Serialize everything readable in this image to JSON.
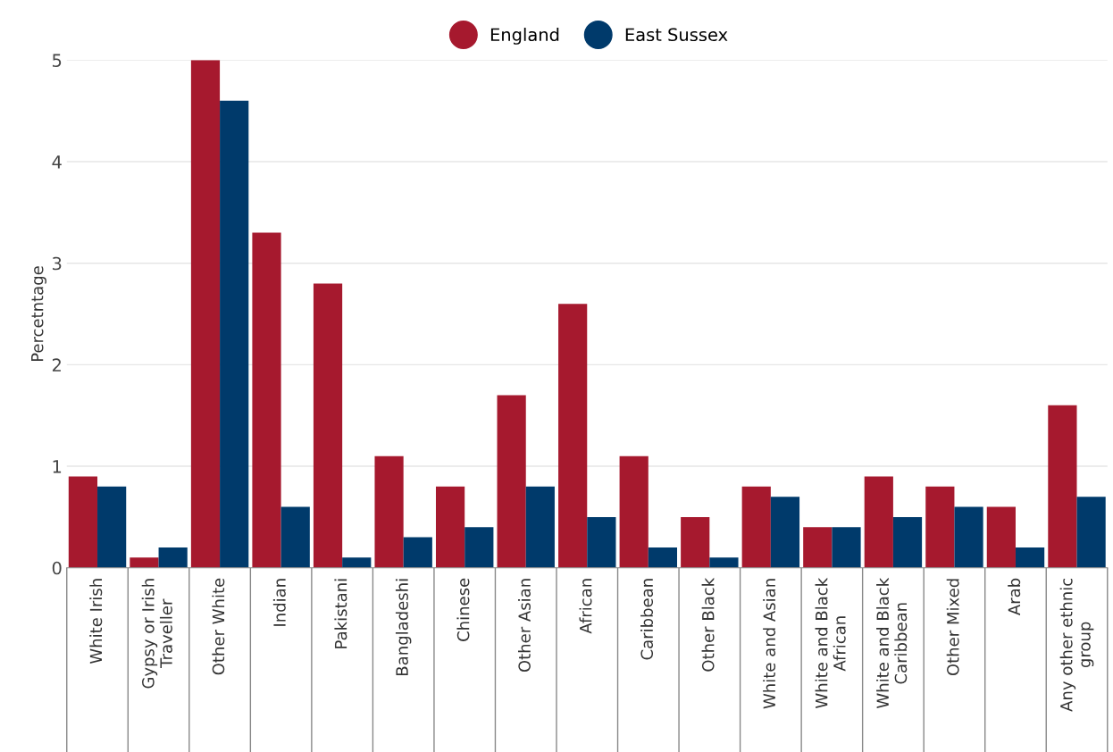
{
  "chart_data": {
    "type": "bar",
    "ylabel": "Percetntage",
    "categories": [
      "White Irish",
      "Gypsy or Irish Traveller",
      "Other White",
      "Indian",
      "Pakistani",
      "Bangladeshi",
      "Chinese",
      "Other Asian",
      "African",
      "Caribbean",
      "Other Black",
      "White and Asian",
      "White and Black African",
      "White and Black Caribbean",
      "Other Mixed",
      "Arab",
      "Any other ethnic group"
    ],
    "series": [
      {
        "name": "England",
        "color": "#a6192e",
        "values": [
          0.9,
          0.1,
          5.0,
          3.3,
          2.8,
          1.1,
          0.8,
          1.7,
          2.6,
          1.1,
          0.5,
          0.8,
          0.4,
          0.9,
          0.8,
          0.6,
          1.6
        ]
      },
      {
        "name": "East Sussex",
        "color": "#003a6b",
        "values": [
          0.8,
          0.2,
          4.6,
          0.6,
          0.1,
          0.3,
          0.4,
          0.8,
          0.5,
          0.2,
          0.1,
          0.7,
          0.4,
          0.5,
          0.6,
          0.2,
          0.7
        ]
      }
    ],
    "ylim": [
      0,
      5
    ],
    "yticks": [
      0,
      1,
      2,
      3,
      4,
      5
    ],
    "grid": "y",
    "legend": "top"
  }
}
